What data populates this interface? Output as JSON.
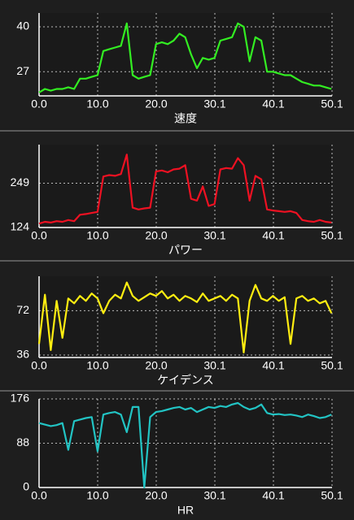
{
  "chart_data": [
    {
      "type": "line",
      "title": "速度",
      "color": "#33ee22",
      "x": [
        0,
        1,
        2,
        3,
        4,
        5,
        6,
        7,
        8,
        9,
        10,
        11,
        12,
        13,
        14,
        15,
        16,
        17,
        18,
        19,
        20,
        21,
        22,
        23,
        24,
        25,
        26,
        27,
        28,
        29,
        30,
        31,
        32,
        33,
        34,
        35,
        36,
        37,
        38,
        39,
        40,
        41,
        42,
        43,
        44,
        45,
        46,
        47,
        48,
        49,
        50
      ],
      "values": [
        21,
        22,
        21.5,
        22,
        22,
        22.5,
        22,
        25,
        25,
        25.5,
        26,
        33,
        33.5,
        34,
        34.5,
        41,
        26,
        25,
        25.5,
        26,
        35,
        35.5,
        35,
        36,
        38,
        37,
        32,
        28,
        31,
        30.5,
        31,
        36,
        36.5,
        37,
        41,
        40,
        30,
        37,
        36,
        27,
        27,
        26.5,
        26,
        26,
        25,
        24,
        23.5,
        23,
        23,
        22.5,
        22
      ],
      "xlim": [
        0,
        50.1
      ],
      "xticks": [
        {
          "value": 0,
          "label": "0.0"
        },
        {
          "value": 10.02,
          "label": "10.0"
        },
        {
          "value": 20.04,
          "label": "20.0"
        },
        {
          "value": 30.06,
          "label": "30.1"
        },
        {
          "value": 40.08,
          "label": "40.1"
        },
        50.1
      ],
      "ylim": [
        20,
        44
      ],
      "yticks": [
        27,
        40
      ],
      "grid": true
    },
    {
      "type": "line",
      "title": "パワー",
      "color": "#ee1122",
      "x": [
        0,
        1,
        2,
        3,
        4,
        5,
        6,
        7,
        8,
        9,
        10,
        11,
        12,
        13,
        14,
        15,
        16,
        17,
        18,
        19,
        20,
        21,
        22,
        23,
        24,
        25,
        26,
        27,
        28,
        29,
        30,
        31,
        32,
        33,
        34,
        35,
        36,
        37,
        38,
        39,
        40,
        41,
        42,
        43,
        44,
        45,
        46,
        47,
        48,
        49,
        50
      ],
      "values": [
        135,
        140,
        138,
        142,
        140,
        145,
        142,
        160,
        162,
        165,
        168,
        268,
        272,
        270,
        275,
        330,
        180,
        175,
        178,
        180,
        282,
        285,
        280,
        288,
        290,
        300,
        205,
        200,
        240,
        185,
        190,
        288,
        292,
        290,
        320,
        300,
        200,
        270,
        260,
        175,
        172,
        170,
        168,
        170,
        165,
        145,
        142,
        140,
        145,
        140,
        138
      ],
      "xlim": [
        0,
        50.1
      ],
      "xticks": [
        {
          "value": 0,
          "label": "0.0"
        },
        {
          "value": 10.02,
          "label": "10.0"
        },
        {
          "value": 20.04,
          "label": "20.0"
        },
        {
          "value": 30.06,
          "label": "30.1"
        },
        {
          "value": 40.08,
          "label": "40.1"
        },
        50.1
      ],
      "ylim": [
        124,
        358
      ],
      "yticks": [
        124,
        249
      ],
      "grid": true
    },
    {
      "type": "line",
      "title": "ケイデンス",
      "color": "#ffee11",
      "x": [
        0,
        1,
        2,
        3,
        4,
        5,
        6,
        7,
        8,
        9,
        10,
        11,
        12,
        13,
        14,
        15,
        16,
        17,
        18,
        19,
        20,
        21,
        22,
        23,
        24,
        25,
        26,
        27,
        28,
        29,
        30,
        31,
        32,
        33,
        34,
        35,
        36,
        37,
        38,
        39,
        40,
        41,
        42,
        43,
        44,
        45,
        46,
        47,
        48,
        49,
        50
      ],
      "values": [
        45,
        85,
        40,
        80,
        50,
        82,
        78,
        84,
        80,
        86,
        82,
        70,
        80,
        85,
        82,
        95,
        84,
        80,
        83,
        86,
        84,
        88,
        82,
        85,
        80,
        84,
        82,
        79,
        86,
        80,
        82,
        84,
        80,
        85,
        82,
        38,
        80,
        93,
        82,
        80,
        84,
        80,
        83,
        45,
        82,
        84,
        80,
        82,
        78,
        80,
        70
      ],
      "xlim": [
        0,
        50.1
      ],
      "xticks": [
        {
          "value": 0,
          "label": "0.0"
        },
        {
          "value": 10.02,
          "label": "10.0"
        },
        {
          "value": 20.04,
          "label": "20.0"
        },
        {
          "value": 30.06,
          "label": "30.1"
        },
        {
          "value": 40.08,
          "label": "40.1"
        },
        50.1
      ],
      "ylim": [
        34,
        100
      ],
      "yticks": [
        36,
        72
      ],
      "grid": true
    },
    {
      "type": "line",
      "title": "HR",
      "color": "#22c4c4",
      "x": [
        0,
        1,
        2,
        3,
        4,
        5,
        6,
        7,
        8,
        9,
        10,
        11,
        12,
        13,
        14,
        15,
        16,
        17,
        18,
        19,
        20,
        21,
        22,
        23,
        24,
        25,
        26,
        27,
        28,
        29,
        30,
        31,
        32,
        33,
        34,
        35,
        36,
        37,
        38,
        39,
        40,
        41,
        42,
        43,
        44,
        45,
        46,
        47,
        48,
        49,
        50
      ],
      "values": [
        128,
        125,
        122,
        124,
        128,
        75,
        132,
        135,
        138,
        140,
        72,
        145,
        148,
        150,
        145,
        110,
        160,
        160,
        0,
        140,
        150,
        152,
        155,
        158,
        160,
        155,
        158,
        150,
        155,
        160,
        158,
        162,
        160,
        165,
        168,
        160,
        155,
        158,
        165,
        148,
        145,
        146,
        144,
        145,
        143,
        140,
        145,
        142,
        138,
        140,
        145
      ],
      "xlim": [
        0,
        50.1
      ],
      "xticks": [
        {
          "value": 0,
          "label": "0.0"
        },
        {
          "value": 10.02,
          "label": "10.0"
        },
        {
          "value": 20.04,
          "label": "20.0"
        },
        {
          "value": 30.06,
          "label": "30.1"
        },
        {
          "value": 40.08,
          "label": "40.1"
        },
        50.1
      ],
      "ylim": [
        0,
        176
      ],
      "yticks": [
        0,
        88,
        176
      ],
      "grid": true
    }
  ]
}
